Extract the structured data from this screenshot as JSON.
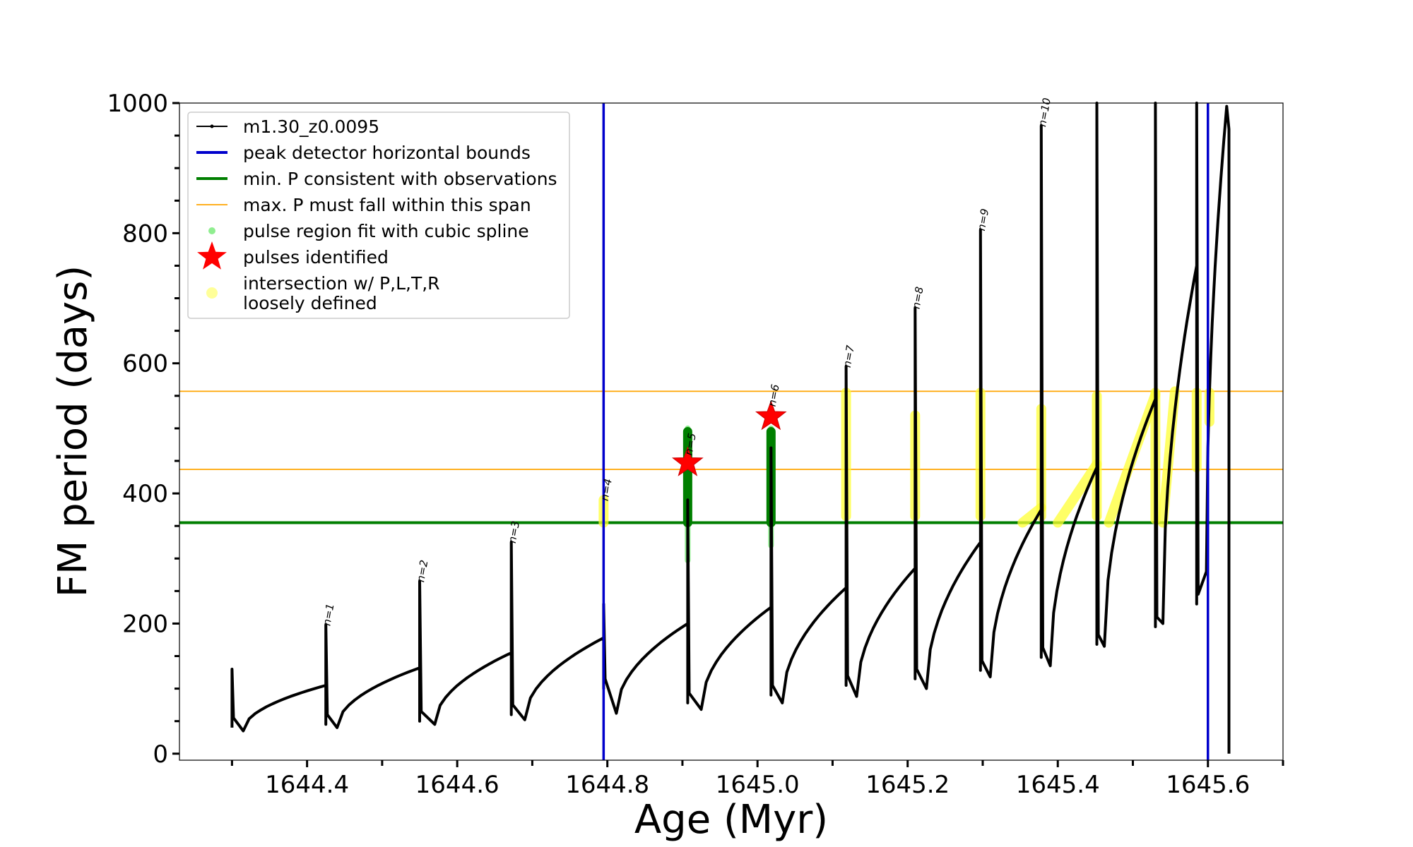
{
  "chart_data": {
    "type": "line",
    "title": "",
    "xlabel": "Age (Myr)",
    "ylabel": "FM period (days)",
    "xlim": [
      1644.23,
      1645.7
    ],
    "ylim": [
      -10,
      1000
    ],
    "xticks": [
      1644.4,
      1644.6,
      1644.8,
      1645.0,
      1645.2,
      1645.4,
      1645.6
    ],
    "xtick_labels": [
      "1644.4",
      "1644.6",
      "1644.8",
      "1645.0",
      "1645.2",
      "1645.4",
      "1645.6"
    ],
    "yticks": [
      0,
      200,
      400,
      600,
      800,
      1000
    ],
    "ytick_labels": [
      "0",
      "200",
      "400",
      "600",
      "800",
      "1000"
    ],
    "series": [
      {
        "name": "m1.30_z0.0095",
        "color": "#000000",
        "pulses": [
          {
            "x0": 1644.3,
            "start": 40,
            "peak": 130,
            "xmin": 1644.315,
            "min": 35,
            "xrise": 1644.425,
            "rise": 105
          },
          {
            "x0": 1644.425,
            "start": 45,
            "peak": 198,
            "xmin": 1644.44,
            "min": 40,
            "xrise": 1644.55,
            "rise": 132
          },
          {
            "x0": 1644.55,
            "start": 50,
            "peak": 265,
            "xmin": 1644.57,
            "min": 45,
            "xrise": 1644.672,
            "rise": 155
          },
          {
            "x0": 1644.672,
            "start": 60,
            "peak": 325,
            "xmin": 1644.69,
            "min": 52,
            "xrise": 1644.795,
            "rise": 178
          },
          {
            "x0": 1644.795,
            "start": 100,
            "peak": 230,
            "xmin": 1644.812,
            "min": 62,
            "xrise": 1644.907,
            "rise": 200
          },
          {
            "x0": 1644.907,
            "start": 78,
            "peak": 390,
            "xmin": 1644.925,
            "min": 68,
            "xrise": 1645.018,
            "rise": 225
          },
          {
            "x0": 1645.018,
            "start": 90,
            "peak": 470,
            "xmin": 1645.033,
            "min": 78,
            "xrise": 1645.118,
            "rise": 255
          },
          {
            "x0": 1645.118,
            "start": 105,
            "peak": 595,
            "xmin": 1645.132,
            "min": 88,
            "xrise": 1645.21,
            "rise": 285
          },
          {
            "x0": 1645.21,
            "start": 115,
            "peak": 685,
            "xmin": 1645.225,
            "min": 100,
            "xrise": 1645.297,
            "rise": 325
          },
          {
            "x0": 1645.297,
            "start": 128,
            "peak": 805,
            "xmin": 1645.31,
            "min": 118,
            "xrise": 1645.378,
            "rise": 375
          },
          {
            "x0": 1645.378,
            "start": 148,
            "peak": 965,
            "xmin": 1645.39,
            "min": 135,
            "xrise": 1645.452,
            "rise": 440
          },
          {
            "x0": 1645.452,
            "start": 168,
            "peak": 1000,
            "xmin": 1645.462,
            "min": 165,
            "xrise": 1645.53,
            "rise": 545
          },
          {
            "x0": 1645.53,
            "start": 195,
            "peak": 1000,
            "xmin": 1645.54,
            "min": 200,
            "xrise": 1645.585,
            "rise": 750
          },
          {
            "x0": 1645.585,
            "start": 230,
            "peak": 1000,
            "xmin": 1645.598,
            "min": 280,
            "xrise": 1645.625,
            "rise": 995
          }
        ],
        "final_drop": {
          "x": 1645.628,
          "from": 960,
          "to": 0
        }
      }
    ],
    "vlines": [
      {
        "name": "peak detector horizontal bounds",
        "x": 1644.795,
        "color": "#0000cc"
      },
      {
        "name": "peak detector horizontal bounds",
        "x": 1645.6,
        "color": "#0000cc"
      }
    ],
    "hlines": [
      {
        "name": "min. P consistent with observations",
        "y": 355,
        "color": "#007f00"
      },
      {
        "name": "max. P must fall within this span",
        "y": 437,
        "color": "#ffa500"
      },
      {
        "name": "max. P must fall within this span",
        "y": 557,
        "color": "#ffa500"
      }
    ],
    "pulse_regions": [
      {
        "x": 1644.907,
        "y_from": 297,
        "y_to": 500,
        "fit_from": 355,
        "fit_to": 495
      },
      {
        "x": 1645.018,
        "y_from": 320,
        "y_to": 500,
        "fit_from": 355,
        "fit_to": 495
      }
    ],
    "pulses_identified": [
      {
        "x": 1644.907,
        "y": 447
      },
      {
        "x": 1645.018,
        "y": 518
      }
    ],
    "intersection_segments": [
      {
        "x0": 1644.795,
        "y0": 355,
        "x1": 1644.795,
        "y1": 390
      },
      {
        "x0": 1645.118,
        "y0": 365,
        "x1": 1645.118,
        "y1": 555
      },
      {
        "x0": 1645.21,
        "y0": 365,
        "x1": 1645.21,
        "y1": 520
      },
      {
        "x0": 1645.297,
        "y0": 365,
        "x1": 1645.297,
        "y1": 555
      },
      {
        "x0": 1645.378,
        "y0": 365,
        "x1": 1645.378,
        "y1": 530
      },
      {
        "x0": 1645.452,
        "y0": 365,
        "x1": 1645.452,
        "y1": 550
      },
      {
        "x0": 1645.53,
        "y0": 360,
        "x1": 1645.53,
        "y1": 555
      },
      {
        "x0": 1645.585,
        "y0": 440,
        "x1": 1645.585,
        "y1": 555
      },
      {
        "x0": 1645.602,
        "y0": 510,
        "x1": 1645.602,
        "y1": 555
      },
      {
        "x0": 1645.353,
        "y0": 355,
        "x1": 1645.378,
        "y1": 378
      },
      {
        "x0": 1645.4,
        "y0": 355,
        "x1": 1645.452,
        "y1": 445
      },
      {
        "x0": 1645.468,
        "y0": 355,
        "x1": 1645.53,
        "y1": 552
      },
      {
        "x0": 1645.54,
        "y0": 355,
        "x1": 1645.556,
        "y1": 557
      }
    ],
    "annotations": [
      {
        "text": "n=1",
        "x": 1644.425,
        "y": 198
      },
      {
        "text": "n=2",
        "x": 1644.55,
        "y": 265
      },
      {
        "text": "n=3",
        "x": 1644.672,
        "y": 325
      },
      {
        "text": "n=4",
        "x": 1644.795,
        "y": 390
      },
      {
        "text": "n=5",
        "x": 1644.907,
        "y": 460
      },
      {
        "text": "n=6",
        "x": 1645.018,
        "y": 535
      },
      {
        "text": "n=7",
        "x": 1645.118,
        "y": 595
      },
      {
        "text": "n=8",
        "x": 1645.21,
        "y": 685
      },
      {
        "text": "n=9",
        "x": 1645.297,
        "y": 805
      },
      {
        "text": "n=10",
        "x": 1645.378,
        "y": 965
      }
    ],
    "legend": {
      "position": "top-left",
      "entries": [
        {
          "label": "m1.30_z0.0095",
          "kind": "line-dots",
          "color": "#000000"
        },
        {
          "label": "peak detector horizontal bounds",
          "kind": "line-thick",
          "color": "#0000cc"
        },
        {
          "label": "min. P consistent with observations",
          "kind": "line-thick",
          "color": "#007f00"
        },
        {
          "label": "max. P must fall within this span",
          "kind": "line-thin",
          "color": "#ffa500"
        },
        {
          "label": "pulse region fit with cubic spline",
          "kind": "dot",
          "color": "#90ee90"
        },
        {
          "label": "pulses identified",
          "kind": "star",
          "color": "#ff0000"
        },
        {
          "label": "intersection w/ P,L,T,R",
          "label2": "loosely defined",
          "kind": "dot-large",
          "color": "#ffff99"
        }
      ]
    }
  }
}
